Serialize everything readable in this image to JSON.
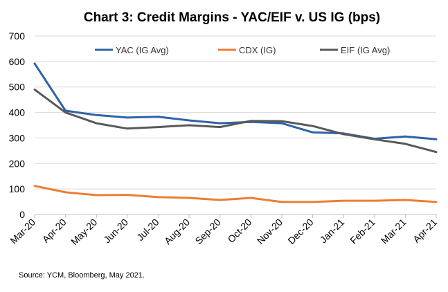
{
  "chart_data": {
    "type": "line",
    "title": "Chart 3: Credit Margins - YAC/EIF v. US IG (bps)",
    "xlabel": "",
    "ylabel": "",
    "categories": [
      "Mar-20",
      "Apr-20",
      "May-20",
      "Jun-20",
      "Jul-20",
      "Aug-20",
      "Sep-20",
      "Oct-20",
      "Nov-20",
      "Dec-20",
      "Jan-21",
      "Feb-21",
      "Mar-21",
      "Apr-21"
    ],
    "ylim": [
      0,
      700
    ],
    "yticks": [
      "0",
      "100",
      "200",
      "300",
      "400",
      "500",
      "600",
      "700"
    ],
    "grid": true,
    "legend_position": "top",
    "series": [
      {
        "name": "YAC (IG Avg)",
        "color": "#2E63A8",
        "values": [
          592,
          407,
          390,
          380,
          383,
          369,
          358,
          363,
          358,
          322,
          318,
          297,
          306,
          295
        ]
      },
      {
        "name": "CDX (IG)",
        "color": "#ED7D31",
        "values": [
          112,
          87,
          76,
          77,
          68,
          65,
          57,
          65,
          49,
          49,
          54,
          54,
          57,
          49
        ]
      },
      {
        "name": "EIF (IG Avg)",
        "color": "#595959",
        "values": [
          490,
          400,
          358,
          337,
          343,
          350,
          343,
          367,
          366,
          347,
          315,
          295,
          277,
          245
        ]
      }
    ],
    "source": "Source: YCM, Bloomberg, May 2021."
  }
}
